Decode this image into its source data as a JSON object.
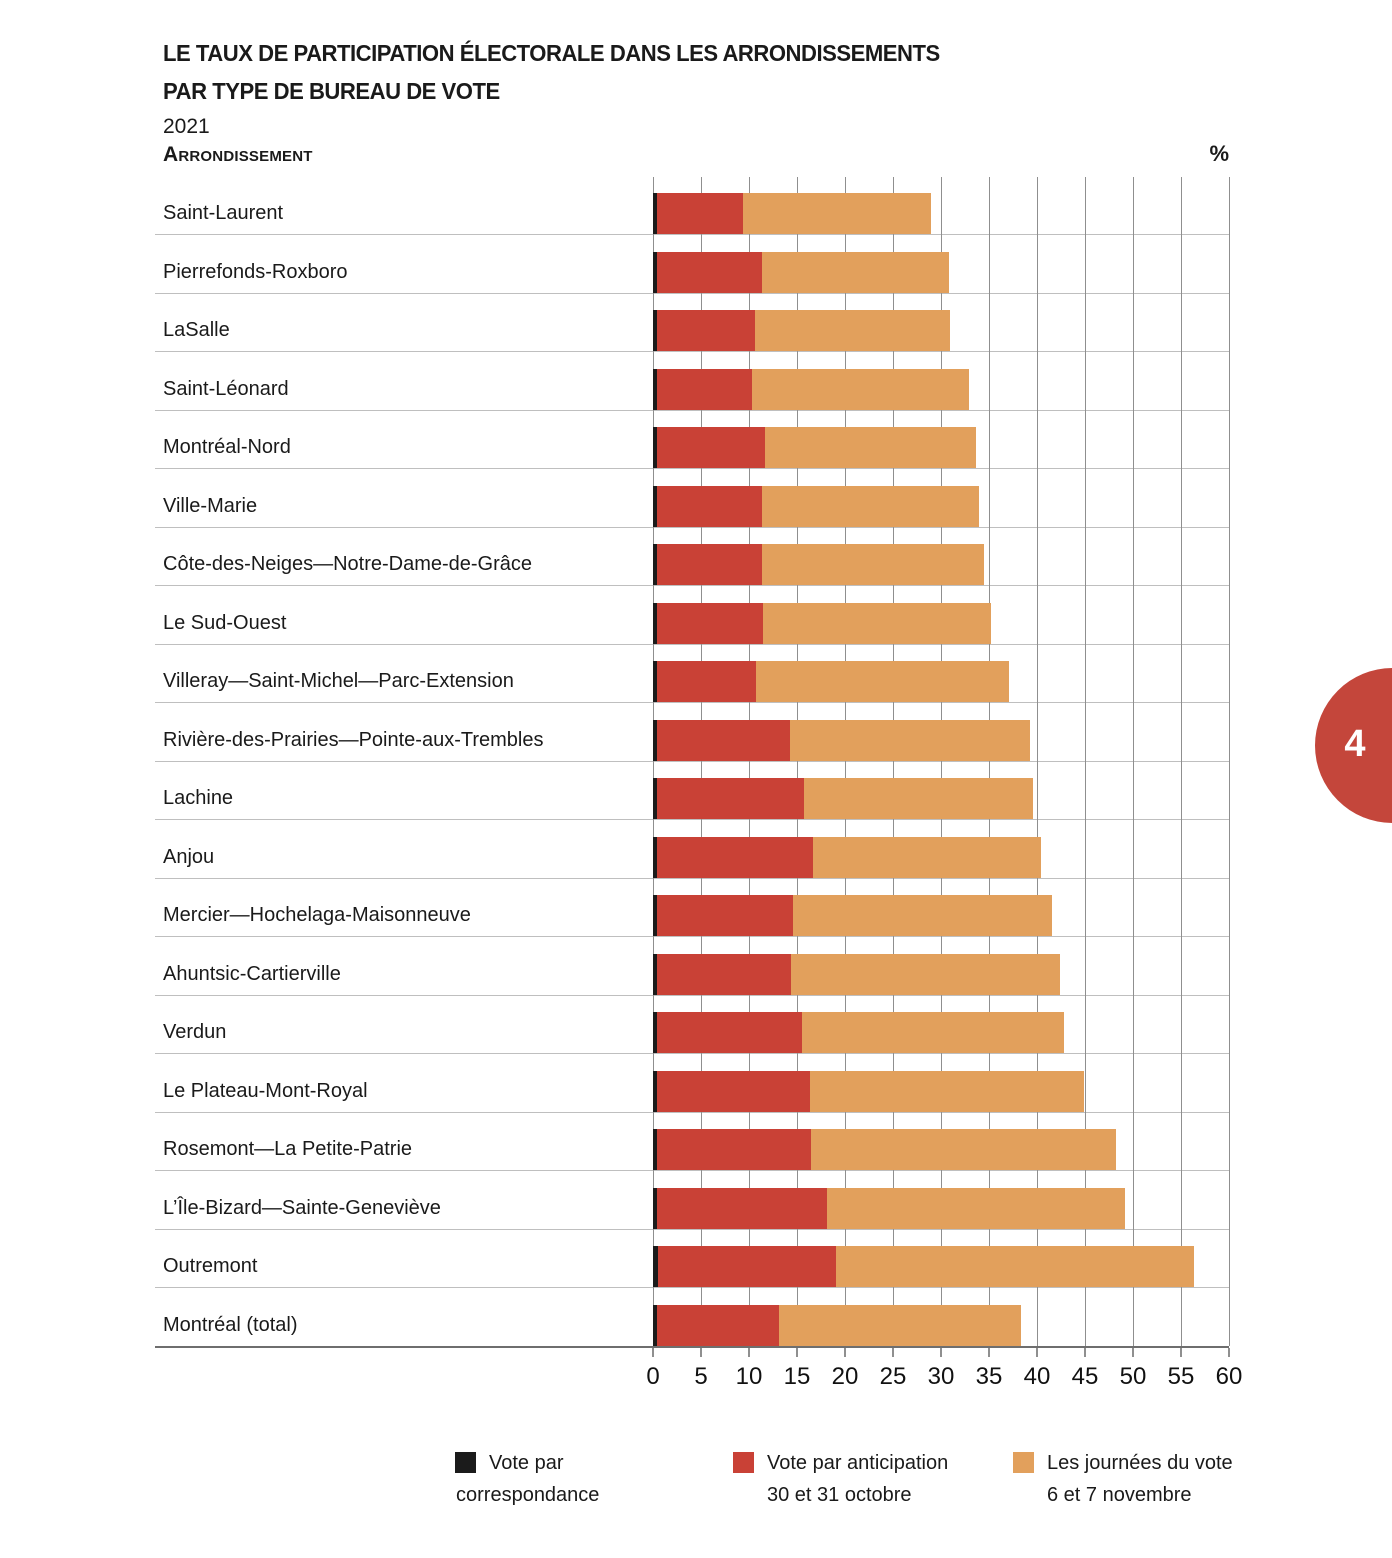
{
  "title": {
    "line1": "LE TAUX DE PARTICIPATION ÉLECTORALE DANS LES ARRONDISSEMENTS",
    "line2": "PAR TYPE DE BUREAU DE VOTE",
    "year": "2021"
  },
  "header": {
    "column_label": "Arrondissement",
    "unit_label": "%"
  },
  "page_number": "4",
  "colors": {
    "correspondance": "#1b1b1b",
    "anticipation": "#c94136",
    "jours_vote": "#e2a05c",
    "page_circle": "#c4463b",
    "grid_vertical": "#8f8f8f",
    "grid_horizontal": "#bfbfbf",
    "axis": "#6e6e6e"
  },
  "chart_data": {
    "type": "bar",
    "orientation": "horizontal",
    "stacked": true,
    "title": "Le taux de participation électorale dans les arrondissements par type de bureau de vote, 2021",
    "xlabel": "%",
    "ylabel": "Arrondissement",
    "xlim": [
      0,
      60
    ],
    "xticks": [
      0,
      5,
      10,
      15,
      20,
      25,
      30,
      35,
      40,
      45,
      50,
      55,
      60
    ],
    "grid": true,
    "legend_position": "bottom",
    "categories": [
      "Saint-Laurent",
      "Pierrefonds-Roxboro",
      "LaSalle",
      "Saint-Léonard",
      "Montréal-Nord",
      "Ville-Marie",
      "Côte-des-Neiges—Notre-Dame-de-Grâce",
      "Le Sud-Ouest",
      "Villeray—Saint-Michel—Parc-Extension",
      "Rivière-des-Prairies—Pointe-aux-Trembles",
      "Lachine",
      "Anjou",
      "Mercier—Hochelaga-Maisonneuve",
      "Ahuntsic-Cartierville",
      "Verdun",
      "Le Plateau-Mont-Royal",
      "Rosemont—La Petite-Patrie",
      "L’Île-Bizard—Sainte-Geneviève",
      "Outremont",
      "Montréal (total)"
    ],
    "series": [
      {
        "name": "Vote par correspondance",
        "color_key": "correspondance",
        "values": [
          0.4,
          0.4,
          0.4,
          0.4,
          0.4,
          0.4,
          0.4,
          0.4,
          0.4,
          0.4,
          0.4,
          0.4,
          0.4,
          0.4,
          0.4,
          0.4,
          0.4,
          0.4,
          0.5,
          0.4
        ]
      },
      {
        "name": "Vote par anticipation 30 et 31 octobre",
        "color_key": "anticipation",
        "values": [
          9.0,
          11.0,
          10.2,
          9.9,
          11.3,
          11.0,
          11.0,
          11.1,
          10.3,
          13.9,
          15.3,
          16.3,
          14.2,
          14.0,
          15.1,
          16.0,
          16.1,
          17.7,
          18.6,
          12.7
        ]
      },
      {
        "name": "Les journées du vote 6 et 7 novembre",
        "color_key": "jours_vote",
        "values": [
          19.6,
          19.4,
          20.3,
          22.6,
          22.0,
          22.6,
          23.1,
          23.7,
          26.4,
          25.0,
          23.9,
          23.7,
          27.0,
          28.0,
          27.3,
          28.5,
          31.7,
          31.1,
          37.3,
          25.2
        ]
      }
    ],
    "totals": [
      29.0,
      30.8,
      30.9,
      32.9,
      33.7,
      34.0,
      34.5,
      35.2,
      37.1,
      39.3,
      39.6,
      40.4,
      41.6,
      42.4,
      42.8,
      44.9,
      48.2,
      49.2,
      56.4,
      38.3
    ]
  },
  "legend": [
    {
      "line1": "Vote par",
      "line2": "correspondance",
      "color_key": "correspondance",
      "wrap_under": true
    },
    {
      "line1": "Vote par anticipation",
      "line2": "30 et 31 octobre",
      "color_key": "anticipation",
      "wrap_under": false
    },
    {
      "line1": "Les journées du vote",
      "line2": "6 et 7 novembre",
      "color_key": "jours_vote",
      "wrap_under": false
    }
  ]
}
